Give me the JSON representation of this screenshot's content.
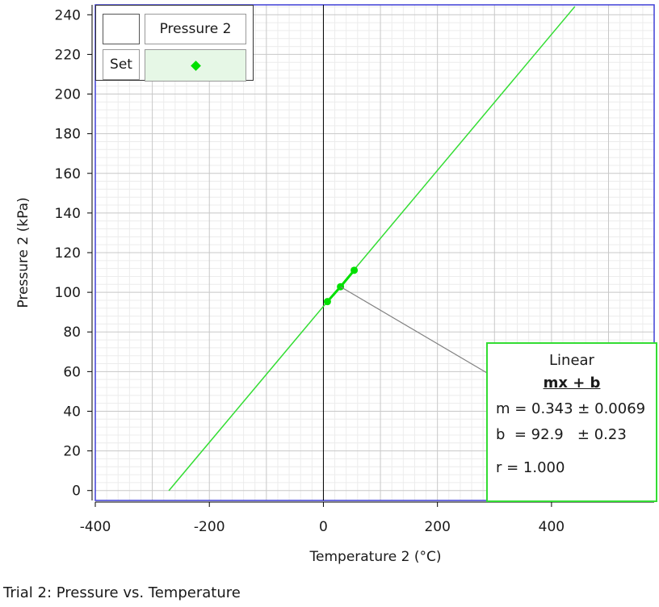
{
  "chart_data": {
    "type": "scatter",
    "title": "",
    "xlabel": "Temperature 2 (°C)",
    "ylabel": "Pressure 2 (kPa)",
    "xlim": [
      -400,
      580
    ],
    "ylim": [
      -5,
      245
    ],
    "x_ticks": [
      -400,
      -200,
      0,
      200,
      400
    ],
    "y_ticks": [
      0,
      20,
      40,
      60,
      80,
      100,
      120,
      140,
      160,
      180,
      200,
      220,
      240
    ],
    "grid": true,
    "series": [
      {
        "name": "Pressure 2",
        "color": "#00e000",
        "x": [
          7,
          30,
          54
        ],
        "y": [
          95.3,
          102.8,
          111.1
        ]
      }
    ],
    "fit": {
      "type": "Linear",
      "equation": "mx + b",
      "m": 0.343,
      "b": 92.9,
      "x_range": [
        -271,
        441
      ],
      "line_color": "#33dd33"
    }
  },
  "legend": {
    "series_label": "Pressure 2",
    "set_label": "Set"
  },
  "fit_box": {
    "title": "Linear",
    "equation": "mx + b",
    "m_line": "m = 0.343 ± 0.0069",
    "b_line": "b  = 92.9   ± 0.23",
    "r_line": "r = 1.000"
  },
  "caption": "Trial 2: Pressure vs. Temperature"
}
